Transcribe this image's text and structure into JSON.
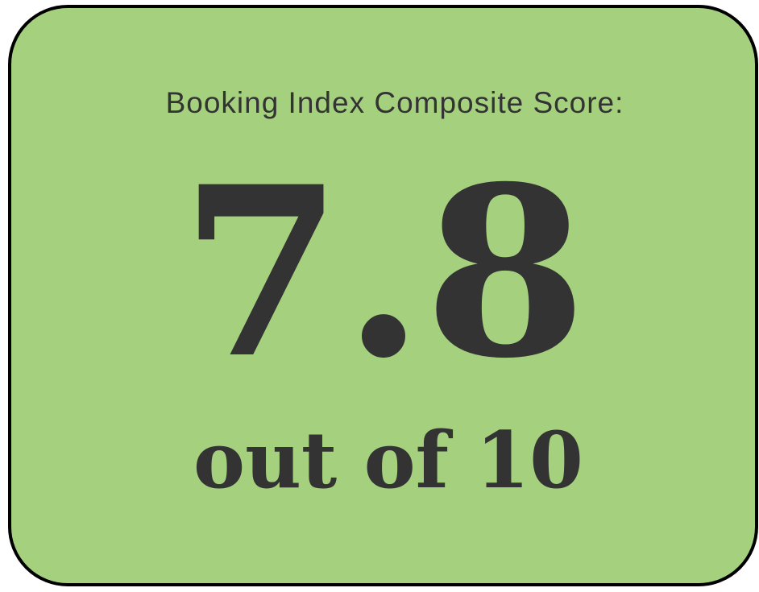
{
  "card": {
    "label": "Booking Index Composite Score:",
    "score": 7.8,
    "scale": "out of 10"
  }
}
